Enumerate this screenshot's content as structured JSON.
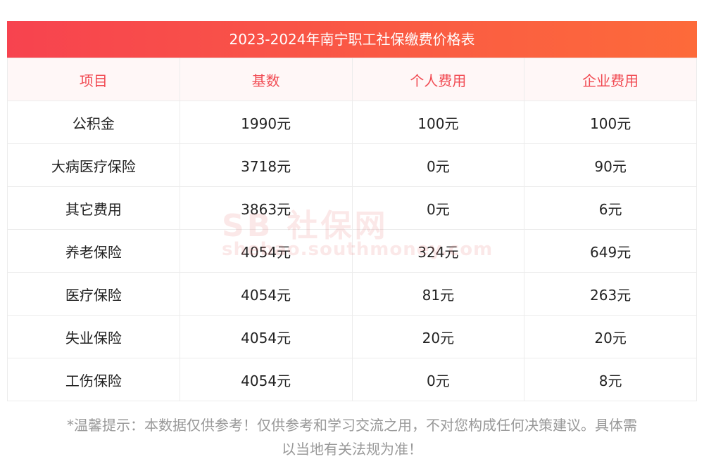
{
  "title": "2023-2024年南宁职工社保缴费价格表",
  "headers": [
    "项目",
    "基数",
    "个人费用",
    "企业费用"
  ],
  "rows": [
    [
      "公积金",
      "1990元",
      "100元",
      "100元"
    ],
    [
      "大病医疗保险",
      "3718元",
      "0元",
      "90元"
    ],
    [
      "其它费用",
      "3863元",
      "0元",
      "6元"
    ],
    [
      "养老保险",
      "4054元",
      "324元",
      "649元"
    ],
    [
      "医疗保险",
      "4054元",
      "81元",
      "263元"
    ],
    [
      "失业保险",
      "4054元",
      "20元",
      "20元"
    ],
    [
      "工伤保险",
      "4054元",
      "0元",
      "8元"
    ]
  ],
  "watermark": {
    "logo": "SB 社保网",
    "url": "shebao.southmoney.com"
  },
  "note_line1": "*温馨提示：本数据仅供参考！仅供参考和学习交流之用，不对您构成任何决策建议。具体需",
  "note_line2": "以当地有关法规为准！",
  "colors": {
    "header_text": "#f14a52",
    "title_gradient_start": "#f7434f",
    "title_gradient_end": "#fd6a3a"
  }
}
